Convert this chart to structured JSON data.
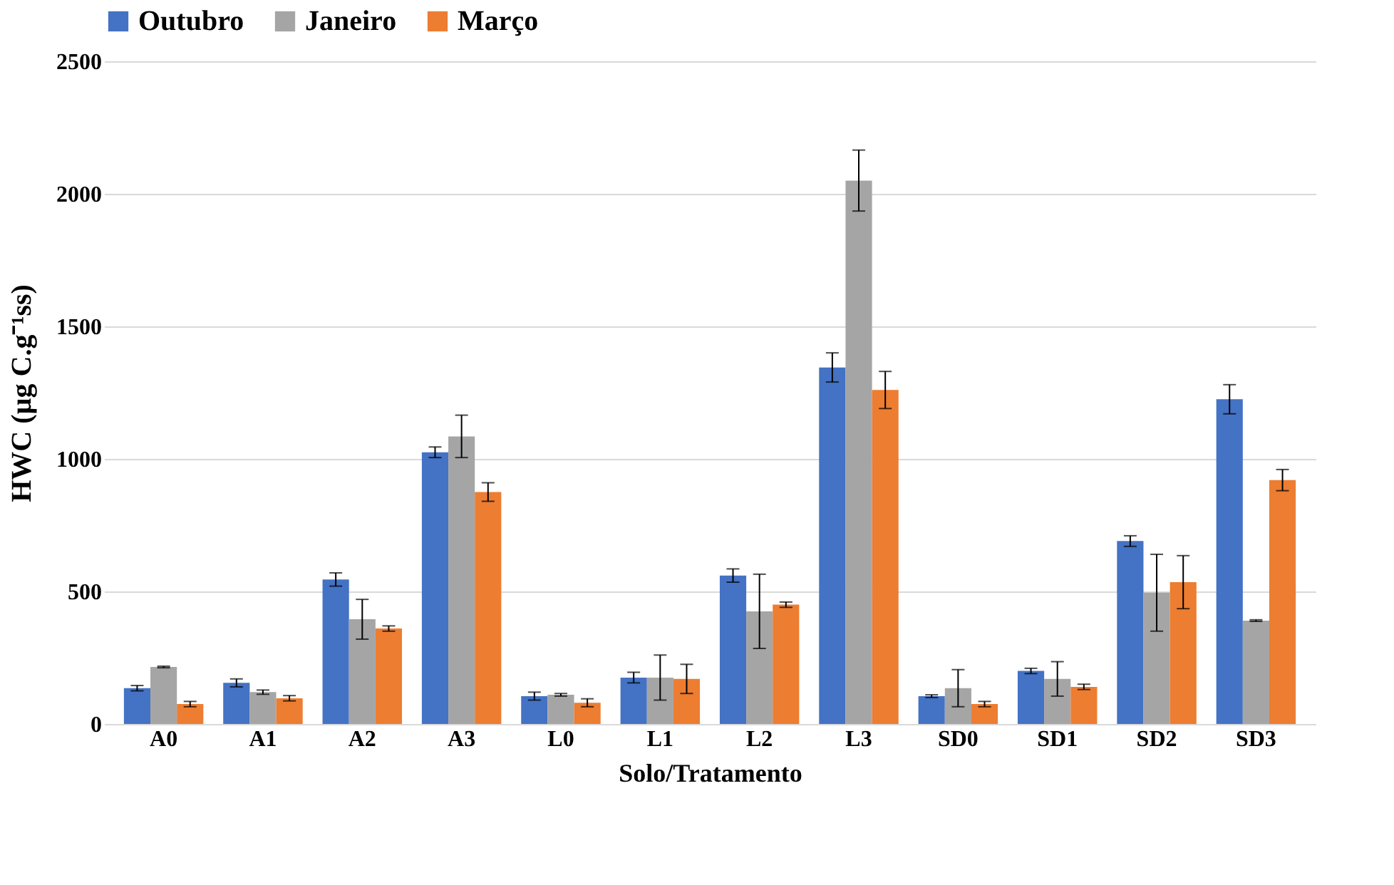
{
  "chart_data": {
    "type": "bar",
    "xlabel": "Solo/Tratamento",
    "ylabel": "HWC (µg C.g⁻¹ss)",
    "categories": [
      "A0",
      "A1",
      "A2",
      "A3",
      "L0",
      "L1",
      "L2",
      "L3",
      "SD0",
      "SD1",
      "SD2",
      "SD3"
    ],
    "series": [
      {
        "name": "Outubro",
        "color": "#4472c4",
        "values": [
          135,
          155,
          545,
          1025,
          105,
          175,
          560,
          1345,
          105,
          200,
          690,
          1225
        ],
        "errors": [
          10,
          15,
          25,
          20,
          15,
          20,
          25,
          55,
          5,
          10,
          20,
          55
        ]
      },
      {
        "name": "Janeiro",
        "color": "#a5a5a5",
        "values": [
          215,
          120,
          395,
          1085,
          110,
          175,
          425,
          2050,
          135,
          170,
          495,
          390
        ],
        "errors": [
          3,
          8,
          75,
          80,
          5,
          85,
          140,
          115,
          70,
          65,
          145,
          3
        ]
      },
      {
        "name": "Março",
        "color": "#ed7d31",
        "values": [
          75,
          97,
          360,
          875,
          80,
          170,
          450,
          1260,
          75,
          140,
          535,
          920
        ],
        "errors": [
          10,
          10,
          10,
          35,
          15,
          55,
          10,
          70,
          10,
          10,
          100,
          40
        ]
      }
    ],
    "ylim": [
      0,
      2500
    ],
    "yticks": [
      0,
      500,
      1000,
      1500,
      2000,
      2500
    ],
    "grid": "y",
    "legend": "top"
  }
}
